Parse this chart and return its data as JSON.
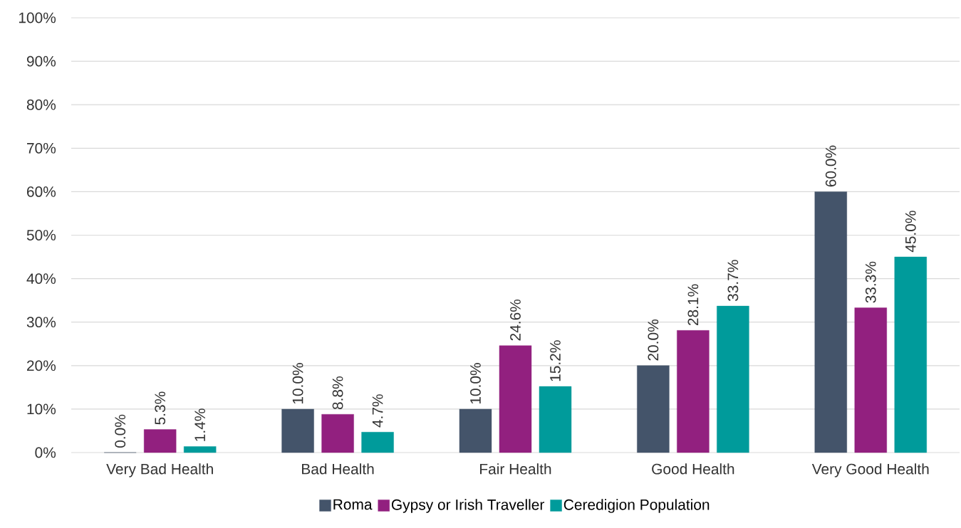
{
  "chart_data": {
    "type": "bar",
    "categories": [
      "Very Bad Health",
      "Bad Health",
      "Fair Health",
      "Good Health",
      "Very Good Health"
    ],
    "series": [
      {
        "name": "Roma",
        "color": "#44546a",
        "values": [
          0.0,
          10.0,
          10.0,
          20.0,
          60.0
        ],
        "value_labels": [
          "0.0%",
          "10.0%",
          "10.0%",
          "20.0%",
          "60.0%"
        ]
      },
      {
        "name": "Gypsy or Irish Traveller",
        "color": "#92207f",
        "values": [
          5.3,
          8.8,
          24.6,
          28.1,
          33.3
        ],
        "value_labels": [
          "5.3%",
          "8.8%",
          "24.6%",
          "28.1%",
          "33.3%"
        ]
      },
      {
        "name": "Ceredigion Population",
        "color": "#009b9b",
        "values": [
          1.4,
          4.7,
          15.2,
          33.7,
          45.0
        ],
        "value_labels": [
          "1.4%",
          "4.7%",
          "15.2%",
          "33.7%",
          "45.0%"
        ]
      }
    ],
    "ylim": [
      0,
      100
    ],
    "yticks": [
      {
        "value": 0,
        "label": "0%"
      },
      {
        "value": 10,
        "label": "10%"
      },
      {
        "value": 20,
        "label": "20%"
      },
      {
        "value": 30,
        "label": "30%"
      },
      {
        "value": 40,
        "label": "40%"
      },
      {
        "value": 50,
        "label": "50%"
      },
      {
        "value": 60,
        "label": "60%"
      },
      {
        "value": 70,
        "label": "70%"
      },
      {
        "value": 80,
        "label": "80%"
      },
      {
        "value": 90,
        "label": "90%"
      },
      {
        "value": 100,
        "label": "100%"
      }
    ],
    "grid": "y",
    "legend": "bottom"
  }
}
